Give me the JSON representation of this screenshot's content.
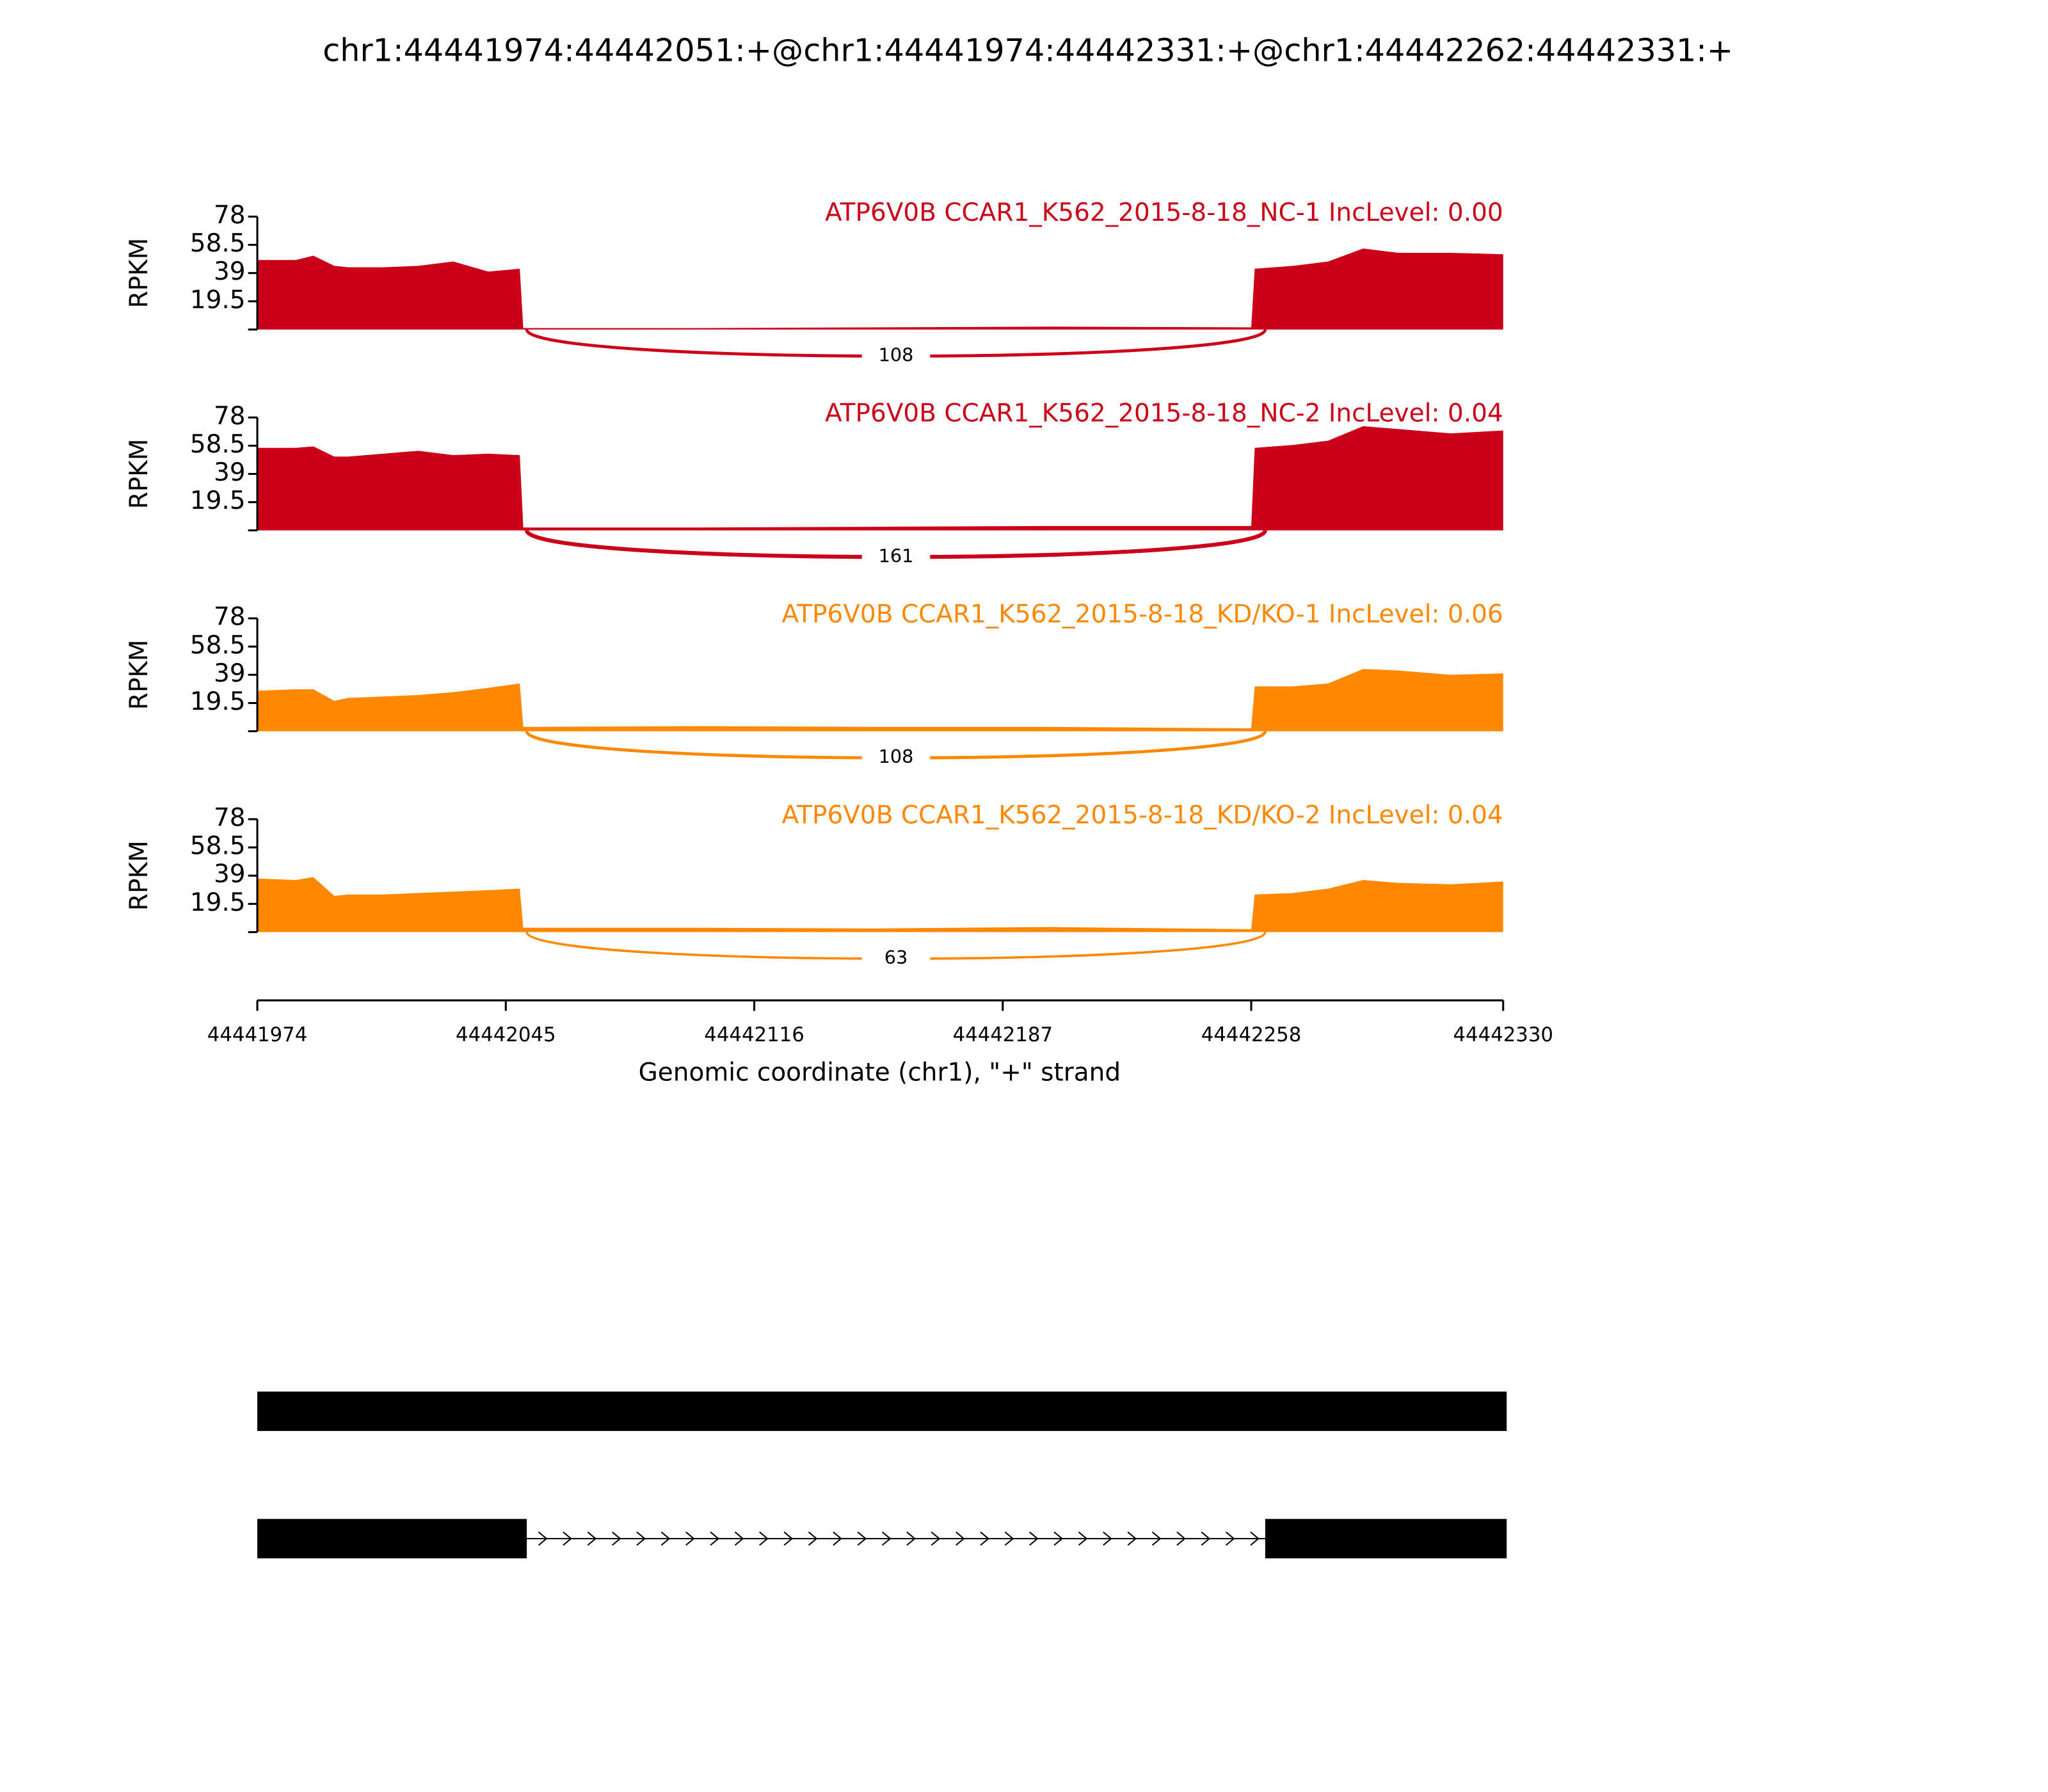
{
  "chart_data": {
    "type": "sashimi",
    "title": "chr1:44441974:44442051:+@chr1:44441974:44442331:+@chr1:44442262:44442331:+",
    "xlabel": "Genomic coordinate (chr1), \"+\" strand",
    "ylabel": "RPKM",
    "xlim": [
      44441974,
      44442330
    ],
    "xticks": [
      44441974,
      44442045,
      44442116,
      44442187,
      44442258,
      44442330
    ],
    "ylim": [
      0,
      78
    ],
    "yticks": [
      19.5,
      39,
      58.5,
      78
    ],
    "x": [
      44441974,
      44441985,
      44441990,
      44441996,
      44442000,
      44442010,
      44442020,
      44442030,
      44442040,
      44442049,
      44442050,
      44442100,
      44442150,
      44442200,
      44442258,
      44442259,
      44442270,
      44442280,
      44442290,
      44442300,
      44442315,
      44442330
    ],
    "series": [
      {
        "name": "ATP6V0B CCAR1_K562_2015-8-18_NC-1 IncLevel: 0.00",
        "color": "#cc0018",
        "values": [
          48,
          48,
          51,
          44,
          43,
          43,
          44,
          47,
          40,
          42,
          1,
          1,
          1.5,
          2,
          1.5,
          42,
          44,
          47,
          56,
          53,
          53,
          52
        ],
        "junction": {
          "start": 44442051,
          "end": 44442262,
          "count": 108
        }
      },
      {
        "name": "ATP6V0B CCAR1_K562_2015-8-18_NC-2 IncLevel: 0.04",
        "color": "#cc0018",
        "values": [
          57,
          57,
          58,
          51,
          51,
          53,
          55,
          52,
          53,
          52,
          2,
          2,
          2.5,
          3,
          3,
          57,
          59,
          62,
          72,
          70,
          67,
          69
        ],
        "junction": {
          "start": 44442051,
          "end": 44442262,
          "count": 161
        }
      },
      {
        "name": "ATP6V0B CCAR1_K562_2015-8-18_KD/KO-1 IncLevel: 0.06",
        "color": "#ff8800",
        "values": [
          28,
          29,
          29,
          21,
          23,
          24,
          25,
          27,
          30,
          33,
          3,
          3.5,
          3,
          3,
          2,
          31,
          31,
          33,
          43,
          42,
          39,
          40
        ],
        "junction": {
          "start": 44442051,
          "end": 44442262,
          "count": 108
        }
      },
      {
        "name": "ATP6V0B CCAR1_K562_2015-8-18_KD/KO-2 IncLevel: 0.04",
        "color": "#ff8800",
        "values": [
          37,
          36,
          38,
          25,
          26,
          26,
          27,
          28,
          29,
          30,
          3,
          3,
          2.5,
          3.5,
          2,
          26,
          27,
          30,
          36,
          34,
          33,
          35
        ],
        "junction": {
          "start": 44442051,
          "end": 44442262,
          "count": 63
        }
      }
    ],
    "transcripts": [
      {
        "exons": [
          [
            44441974,
            44442331
          ]
        ]
      },
      {
        "exons": [
          [
            44441974,
            44442051
          ],
          [
            44442262,
            44442331
          ]
        ]
      }
    ]
  }
}
